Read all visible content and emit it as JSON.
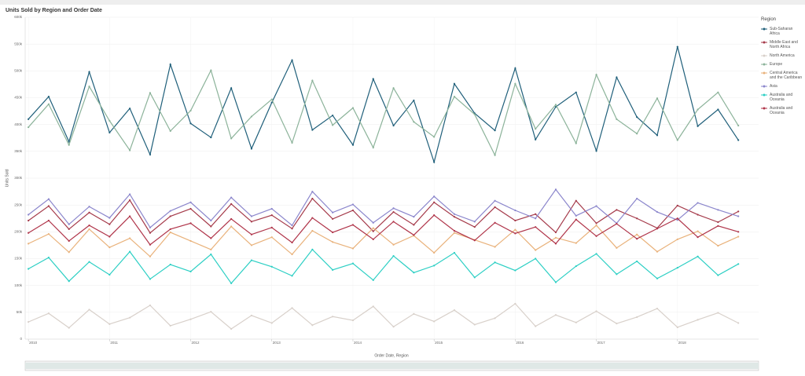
{
  "chart_data": {
    "type": "line",
    "title": "Units Sold by Region and Order Date",
    "y_label": "Units Sold",
    "x_label": "Order Date, Region",
    "legend_title": "Region",
    "legend_position": "right",
    "grid": true,
    "x": [
      2010,
      2010.25,
      2010.5,
      2010.75,
      2011,
      2011.25,
      2011.5,
      2011.75,
      2012,
      2012.25,
      2012.5,
      2012.75,
      2013,
      2013.25,
      2013.5,
      2013.75,
      2014,
      2014.25,
      2014.5,
      2014.75,
      2015,
      2015.25,
      2015.5,
      2015.75,
      2016,
      2016.25,
      2016.5,
      2016.75,
      2017,
      2017.25,
      2017.5,
      2017.75,
      2018,
      2018.25,
      2018.5,
      2018.75
    ],
    "xlim": [
      2009.96,
      2019
    ],
    "xticks": [
      2010,
      2011,
      2012,
      2013,
      2014,
      2015,
      2016,
      2017,
      2018
    ],
    "ylim": [
      0,
      600000
    ],
    "yticks": [
      0,
      {
        "value": 50000,
        "label": "50k"
      },
      {
        "value": 100000,
        "label": "100k"
      },
      {
        "value": 150000,
        "label": "150k"
      },
      {
        "value": 200000,
        "label": "200k"
      },
      {
        "value": 250000,
        "label": "250k"
      },
      {
        "value": 300000,
        "label": "300k"
      },
      {
        "value": 350000,
        "label": "350k"
      },
      {
        "value": 400000,
        "label": "400k"
      },
      {
        "value": 450000,
        "label": "450k"
      },
      {
        "value": 500000,
        "label": "500k"
      },
      {
        "value": 550000,
        "label": "550k"
      },
      {
        "value": 600000,
        "label": "600k"
      }
    ],
    "series": [
      {
        "name": "Sub-Saharan Africa",
        "color": "#1f5f7a",
        "values": [
          410000,
          452000,
          368000,
          498000,
          385000,
          430000,
          344000,
          512000,
          402000,
          376000,
          468000,
          355000,
          441000,
          520000,
          390000,
          417000,
          362000,
          485000,
          398000,
          445000,
          330000,
          476000,
          421000,
          389000,
          505000,
          372000,
          433000,
          460000,
          351000,
          488000,
          414000,
          380000,
          545000,
          397000,
          428000,
          371000
        ]
      },
      {
        "name": "Middle East and North Africa",
        "color": "#a53a4a",
        "values": [
          221000,
          248000,
          205000,
          236000,
          214000,
          259000,
          198000,
          229000,
          243000,
          210000,
          252000,
          219000,
          231000,
          206000,
          262000,
          224000,
          240000,
          201000,
          237000,
          213000,
          255000,
          228000,
          209000,
          246000,
          221000,
          233000,
          199000,
          258000,
          216000,
          241000,
          225000,
          207000,
          249000,
          232000,
          218000,
          238000
        ]
      },
      {
        "name": "North America",
        "color": "#d8d0ca",
        "values": [
          32000,
          48000,
          21000,
          55000,
          28000,
          40000,
          63000,
          25000,
          37000,
          51000,
          19000,
          44000,
          30000,
          58000,
          26000,
          42000,
          35000,
          61000,
          23000,
          47000,
          33000,
          54000,
          27000,
          39000,
          66000,
          24000,
          45000,
          31000,
          52000,
          29000,
          41000,
          57000,
          22000,
          36000,
          49000,
          30000
        ]
      },
      {
        "name": "Europe",
        "color": "#8cb39a",
        "values": [
          395000,
          438000,
          362000,
          471000,
          407000,
          352000,
          459000,
          388000,
          426000,
          501000,
          374000,
          415000,
          447000,
          366000,
          482000,
          399000,
          431000,
          357000,
          468000,
          405000,
          377000,
          452000,
          419000,
          343000,
          476000,
          392000,
          437000,
          365000,
          493000,
          410000,
          383000,
          449000,
          371000,
          428000,
          460000,
          398000
        ]
      },
      {
        "name": "Central America and the Caribbean",
        "color": "#e9b27b",
        "values": [
          178000,
          196000,
          162000,
          205000,
          171000,
          188000,
          154000,
          199000,
          183000,
          167000,
          210000,
          175000,
          190000,
          158000,
          202000,
          181000,
          169000,
          207000,
          176000,
          193000,
          161000,
          198000,
          185000,
          172000,
          204000,
          166000,
          189000,
          179000,
          212000,
          170000,
          195000,
          163000,
          186000,
          201000,
          174000,
          191000
        ]
      },
      {
        "name": "Asia",
        "color": "#8b86cc",
        "values": [
          232000,
          261000,
          214000,
          247000,
          226000,
          270000,
          208000,
          239000,
          255000,
          221000,
          264000,
          229000,
          243000,
          212000,
          275000,
          236000,
          251000,
          217000,
          244000,
          228000,
          266000,
          233000,
          219000,
          258000,
          240000,
          225000,
          279000,
          230000,
          248000,
          216000,
          262000,
          237000,
          222000,
          254000,
          241000,
          229000
        ]
      },
      {
        "name": "Australia and Oceania",
        "color": "#2ccfc4",
        "values": [
          131000,
          152000,
          108000,
          144000,
          120000,
          163000,
          112000,
          139000,
          126000,
          158000,
          104000,
          147000,
          135000,
          118000,
          167000,
          129000,
          141000,
          110000,
          155000,
          124000,
          137000,
          161000,
          115000,
          143000,
          128000,
          150000,
          106000,
          136000,
          159000,
          121000,
          145000,
          113000,
          133000,
          154000,
          119000,
          140000
        ]
      },
      {
        "name": "Australia and Oceania",
        "color": "#b0354a",
        "values": [
          198000,
          221000,
          183000,
          212000,
          191000,
          229000,
          176000,
          205000,
          216000,
          188000,
          224000,
          195000,
          208000,
          180000,
          226000,
          199000,
          213000,
          186000,
          219000,
          194000,
          231000,
          202000,
          184000,
          217000,
          197000,
          209000,
          178000,
          223000,
          192000,
          215000,
          187000,
          206000,
          225000,
          190000,
          211000,
          200000
        ]
      }
    ]
  }
}
